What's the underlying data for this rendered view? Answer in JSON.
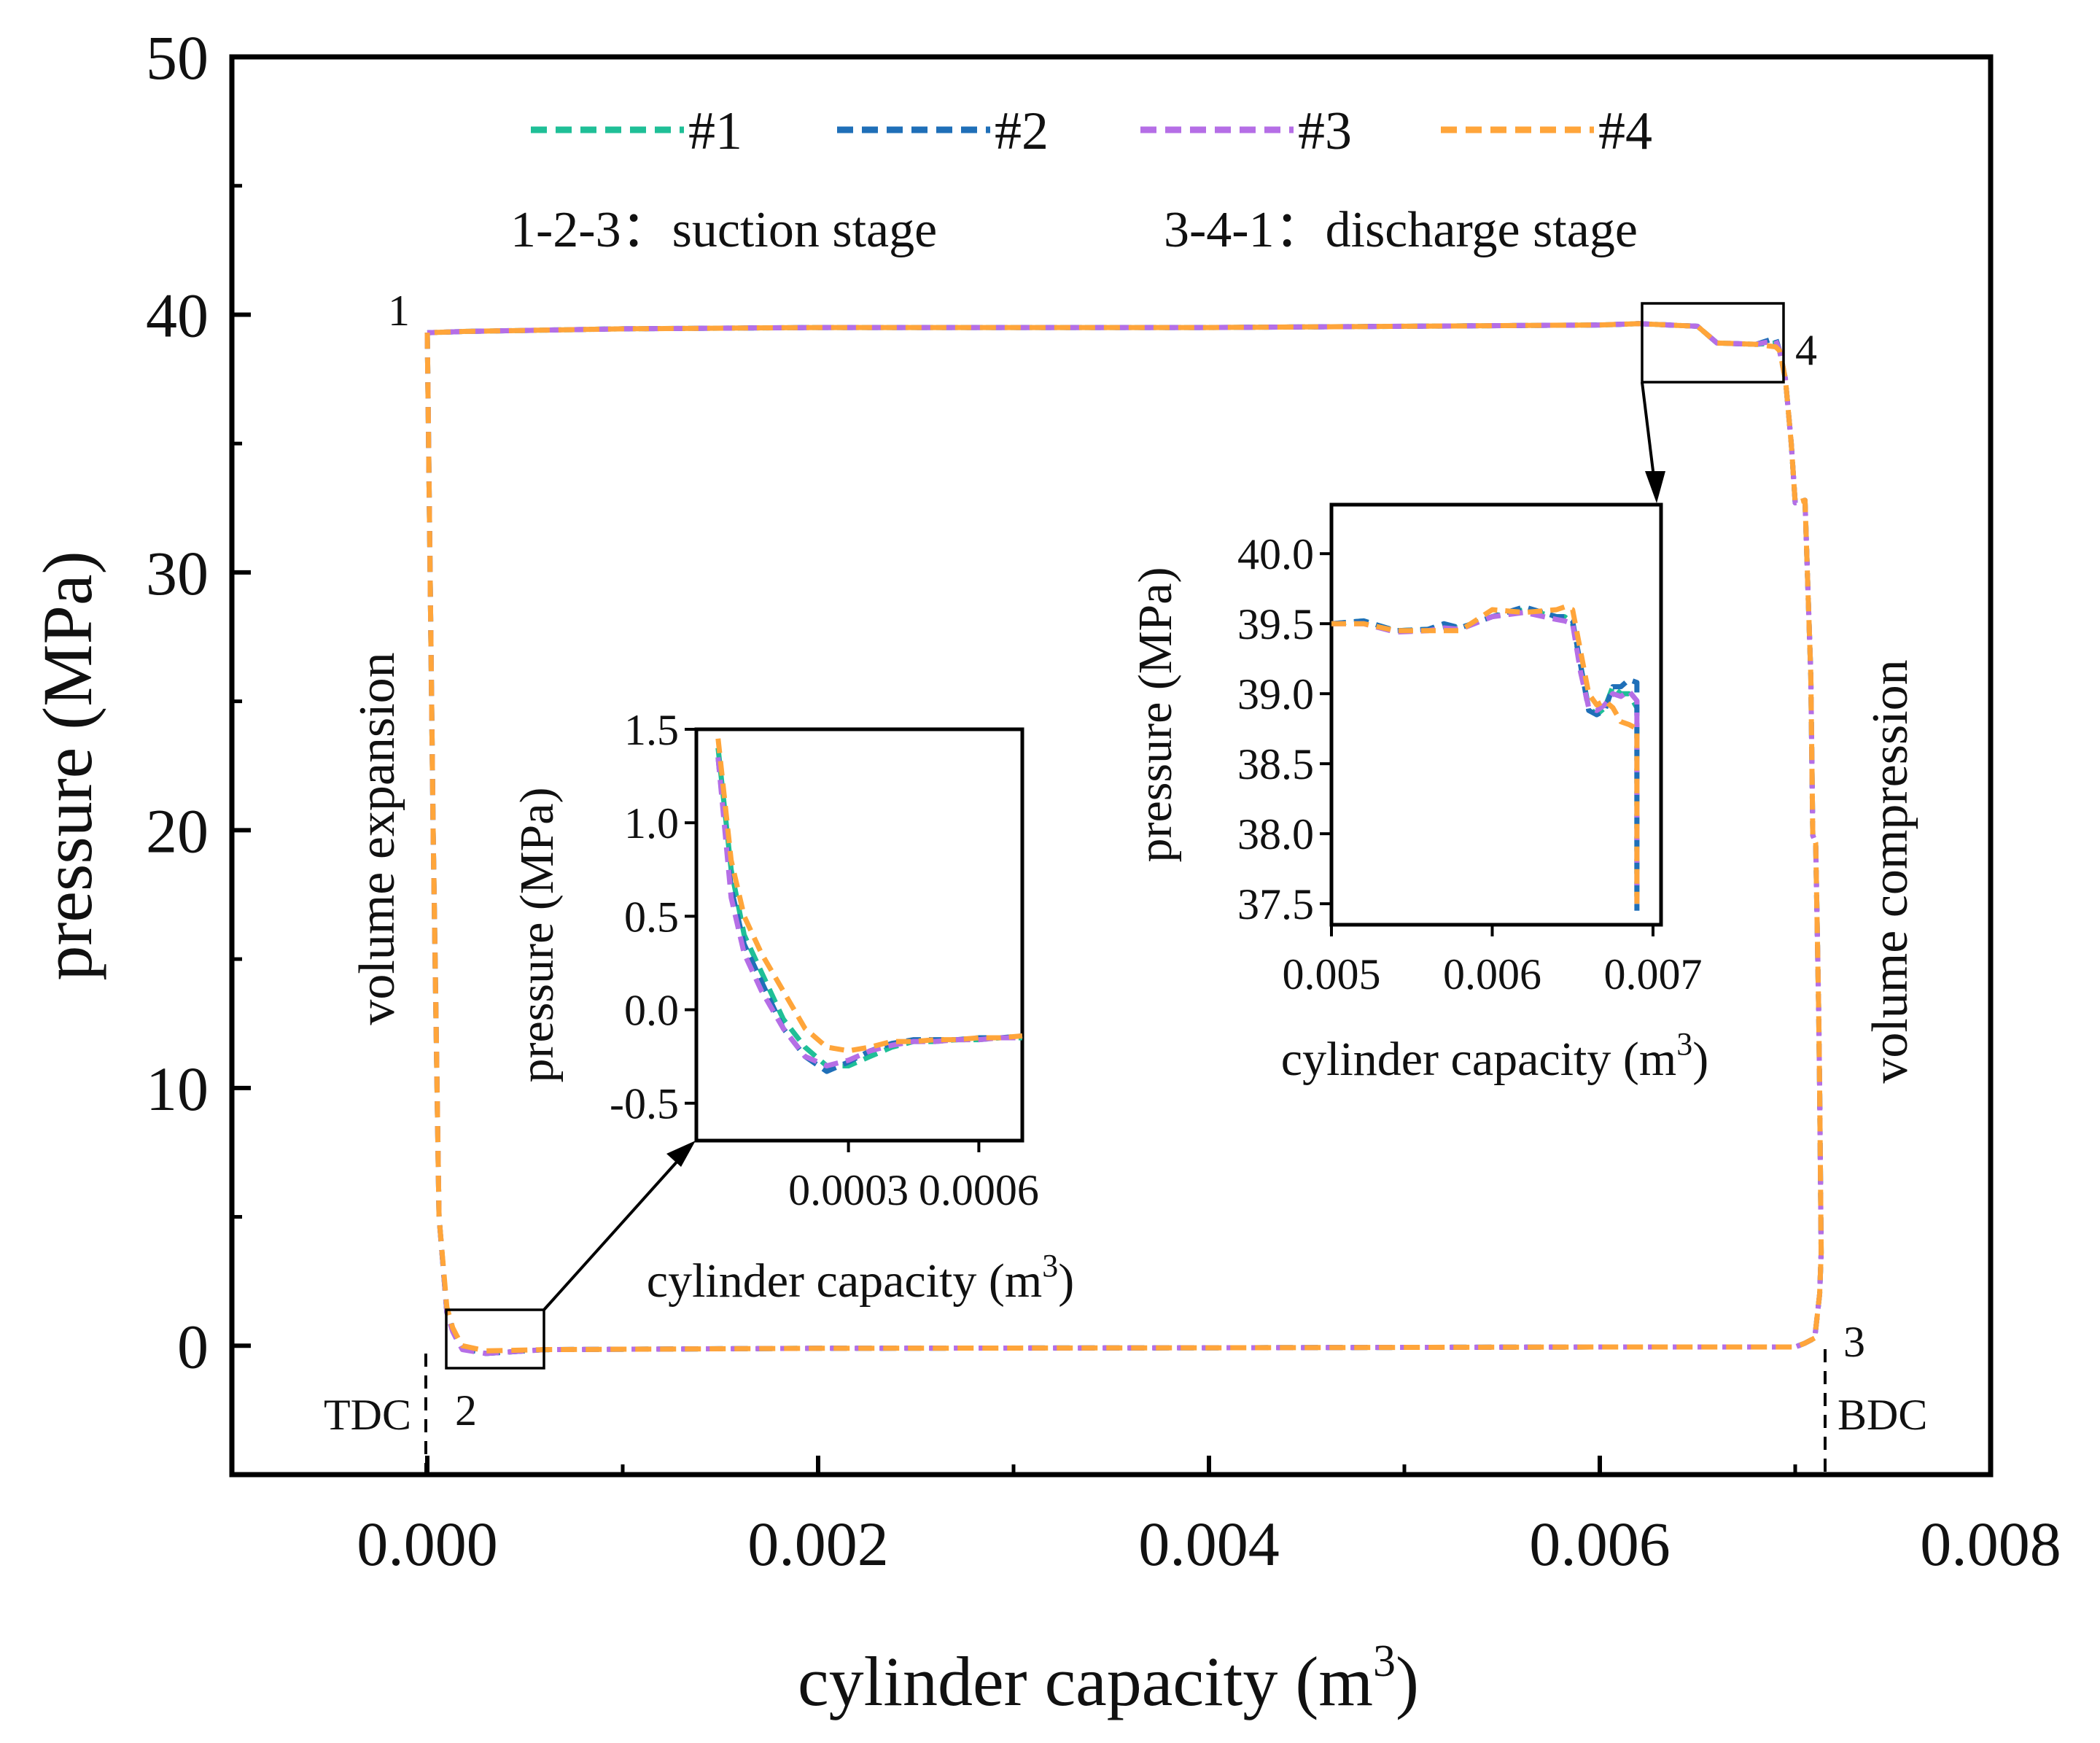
{
  "chart_data": {
    "type": "line",
    "title": "",
    "xlabel": "cylinder capacity (m",
    "xlabel_sup": "3",
    "xlabel_tail": ")",
    "ylabel": "pressure (MPa)",
    "xlim": [
      -0.001,
      0.008
    ],
    "ylim": [
      -5,
      50
    ],
    "x_ticks": [
      "0.000",
      "0.002",
      "0.004",
      "0.006",
      "0.008"
    ],
    "x_tick_values": [
      0,
      0.002,
      0.004,
      0.006,
      0.008
    ],
    "y_ticks": [
      "0",
      "10",
      "20",
      "30",
      "40",
      "50"
    ],
    "y_tick_values": [
      0,
      10,
      20,
      30,
      40,
      50
    ],
    "legend_position": "top-center",
    "grid": false,
    "series": [
      {
        "name": "#1",
        "color": "#1fbf97",
        "dash": "dashed",
        "x": [
          0,
          3e-05,
          6e-05,
          0.0001,
          0.00013,
          0.00015,
          0.00018,
          0.0003,
          0.0006,
          0.002,
          0.004,
          0.006,
          0.007,
          0.00705,
          0.0071,
          0.007125,
          0.007133,
          0.007125,
          0.00712,
          0.007105,
          0.00709,
          0.00708,
          0.00705,
          0.007,
          0.00698,
          0.00695,
          0.00692,
          0.0069,
          0.0068,
          0.0066,
          0.0065,
          0.00635,
          0.0062,
          0.006,
          0.005,
          0.004,
          0.002,
          0.001,
          0.0002,
          0
        ],
        "y": [
          39.3,
          20,
          5,
          1.3,
          0.6,
          0.3,
          -0.1,
          -0.3,
          -0.15,
          -0.1,
          -0.08,
          -0.05,
          -0.05,
          0.1,
          0.3,
          2,
          3.6,
          10,
          13,
          19.5,
          19.8,
          26,
          32.8,
          32.7,
          35,
          37.5,
          38.6,
          38.9,
          38.85,
          38.9,
          39.55,
          39.6,
          39.65,
          39.6,
          39.55,
          39.5,
          39.5,
          39.45,
          39.35,
          39.3
        ]
      },
      {
        "name": "#2",
        "color": "#1f6fb8",
        "dash": "dashed",
        "x": [
          0,
          3e-05,
          6e-05,
          0.0001,
          0.00013,
          0.00015,
          0.00018,
          0.0003,
          0.0006,
          0.002,
          0.004,
          0.006,
          0.007,
          0.00705,
          0.0071,
          0.007125,
          0.007133,
          0.007125,
          0.00712,
          0.007105,
          0.00709,
          0.00708,
          0.00705,
          0.007,
          0.00698,
          0.00695,
          0.00692,
          0.0069,
          0.0068,
          0.0066,
          0.0065,
          0.00635,
          0.0062,
          0.006,
          0.005,
          0.004,
          0.002,
          0.001,
          0.0002,
          0
        ],
        "y": [
          39.3,
          20,
          5,
          1.3,
          0.6,
          0.3,
          -0.1,
          -0.3,
          -0.15,
          -0.1,
          -0.08,
          -0.05,
          -0.05,
          0.1,
          0.3,
          2,
          3.6,
          10,
          13,
          19.5,
          19.8,
          26,
          32.8,
          32.7,
          35,
          37.5,
          38.6,
          39.1,
          38.85,
          38.9,
          39.55,
          39.6,
          39.65,
          39.6,
          39.55,
          39.5,
          39.5,
          39.45,
          39.35,
          39.3
        ]
      },
      {
        "name": "#3",
        "color": "#b56ee6",
        "dash": "dashed",
        "x": [
          0,
          3e-05,
          6e-05,
          0.0001,
          0.00013,
          0.00015,
          0.00018,
          0.0003,
          0.0006,
          0.002,
          0.004,
          0.006,
          0.007,
          0.00705,
          0.0071,
          0.007125,
          0.007133,
          0.007125,
          0.00712,
          0.007105,
          0.00709,
          0.00708,
          0.00705,
          0.007,
          0.00698,
          0.00695,
          0.00692,
          0.0069,
          0.0068,
          0.0066,
          0.0065,
          0.00635,
          0.0062,
          0.006,
          0.005,
          0.004,
          0.002,
          0.001,
          0.0002,
          0
        ],
        "y": [
          39.3,
          20,
          5,
          1.3,
          0.55,
          0.25,
          -0.15,
          -0.3,
          -0.15,
          -0.1,
          -0.08,
          -0.05,
          -0.05,
          0.1,
          0.3,
          2,
          3.6,
          10,
          13,
          19.5,
          19.8,
          26,
          32.8,
          32.7,
          35,
          37.5,
          38.6,
          39.0,
          38.85,
          38.9,
          39.55,
          39.6,
          39.65,
          39.6,
          39.55,
          39.5,
          39.5,
          39.45,
          39.35,
          39.3
        ]
      },
      {
        "name": "#4",
        "color": "#ffa53a",
        "dash": "dashed",
        "x": [
          0,
          3e-05,
          6e-05,
          0.0001,
          0.00013,
          0.00015,
          0.00018,
          0.0003,
          0.0006,
          0.002,
          0.004,
          0.006,
          0.007,
          0.00705,
          0.0071,
          0.007125,
          0.007133,
          0.007125,
          0.00712,
          0.007105,
          0.00709,
          0.00708,
          0.00705,
          0.007,
          0.00698,
          0.00695,
          0.00692,
          0.0069,
          0.0068,
          0.0066,
          0.0065,
          0.00635,
          0.0062,
          0.006,
          0.005,
          0.004,
          0.002,
          0.001,
          0.0002,
          0
        ],
        "y": [
          39.3,
          20,
          5,
          1.5,
          0.7,
          0.4,
          0.0,
          -0.2,
          -0.15,
          -0.1,
          -0.08,
          -0.05,
          -0.05,
          0.1,
          0.3,
          2,
          3.6,
          10,
          13,
          19.5,
          19.8,
          26,
          32.8,
          32.7,
          35,
          37.5,
          38.6,
          38.75,
          38.85,
          38.9,
          39.55,
          39.6,
          39.65,
          39.6,
          39.55,
          39.5,
          39.5,
          39.45,
          39.35,
          39.3
        ]
      }
    ],
    "insets": [
      {
        "id": "inset-suction",
        "xlabel": "cylinder capacity (m",
        "xlabel_sup": "3",
        "xlabel_tail": ")",
        "ylabel": "pressure (MPa)",
        "xlim": [
          -5e-05,
          0.0007
        ],
        "ylim": [
          -0.7,
          1.5
        ],
        "x_ticks": [
          "0.0003",
          "0.0006"
        ],
        "x_tick_values": [
          0.0003,
          0.0006
        ],
        "y_ticks": [
          "1.5",
          "1.0",
          "0.5",
          "0.0",
          "-0.5"
        ],
        "y_tick_values": [
          1.5,
          1.0,
          0.5,
          0.0,
          -0.5
        ],
        "series": [
          {
            "name": "#1",
            "x": [
              0,
              3e-05,
              6e-05,
              0.0001,
              0.00015,
              0.0002,
              0.00025,
              0.0003,
              0.00035,
              0.0004,
              0.00045,
              0.0005,
              0.00055,
              0.0006,
              0.00065,
              0.0007
            ],
            "y": [
              1.4,
              0.75,
              0.4,
              0.2,
              -0.05,
              -0.2,
              -0.3,
              -0.3,
              -0.25,
              -0.2,
              -0.17,
              -0.17,
              -0.16,
              -0.16,
              -0.15,
              -0.15
            ]
          },
          {
            "name": "#2",
            "x": [
              0,
              3e-05,
              6e-05,
              0.0001,
              0.00015,
              0.0002,
              0.00025,
              0.0003,
              0.00035,
              0.0004,
              0.00045,
              0.0005,
              0.00055,
              0.0006,
              0.00065,
              0.0007
            ],
            "y": [
              1.35,
              0.65,
              0.35,
              0.15,
              -0.1,
              -0.25,
              -0.33,
              -0.28,
              -0.22,
              -0.18,
              -0.16,
              -0.16,
              -0.16,
              -0.15,
              -0.15,
              -0.14
            ]
          },
          {
            "name": "#3",
            "x": [
              0,
              3e-05,
              6e-05,
              0.0001,
              0.00015,
              0.0002,
              0.00025,
              0.0003,
              0.00035,
              0.0004,
              0.00045,
              0.0005,
              0.00055,
              0.0006,
              0.00065,
              0.0007
            ],
            "y": [
              1.35,
              0.6,
              0.3,
              0.1,
              -0.1,
              -0.25,
              -0.3,
              -0.27,
              -0.22,
              -0.19,
              -0.17,
              -0.17,
              -0.16,
              -0.16,
              -0.15,
              -0.15
            ]
          },
          {
            "name": "#4",
            "x": [
              0,
              3e-05,
              6e-05,
              0.0001,
              0.00015,
              0.0002,
              0.00025,
              0.0003,
              0.00035,
              0.0004,
              0.00045,
              0.0005,
              0.00055,
              0.0006,
              0.00065,
              0.0007
            ],
            "y": [
              1.45,
              0.8,
              0.5,
              0.3,
              0.1,
              -0.1,
              -0.2,
              -0.22,
              -0.2,
              -0.17,
              -0.17,
              -0.16,
              -0.16,
              -0.15,
              -0.15,
              -0.14
            ]
          }
        ]
      },
      {
        "id": "inset-discharge",
        "xlabel": "cylinder capacity (m",
        "xlabel_sup": "3",
        "xlabel_tail": ")",
        "ylabel": "pressure (MPa)",
        "xlim": [
          0.005,
          0.00705
        ],
        "ylim": [
          37.35,
          40.35
        ],
        "x_ticks": [
          "0.005",
          "0.006",
          "0.007"
        ],
        "x_tick_values": [
          0.005,
          0.006,
          0.007
        ],
        "y_ticks": [
          "40.0",
          "39.5",
          "39.0",
          "38.5",
          "38.0",
          "37.5"
        ],
        "y_tick_values": [
          40.0,
          39.5,
          39.0,
          38.5,
          38.0,
          37.5
        ],
        "series": [
          {
            "name": "#1",
            "x": [
              0.005,
              0.0052,
              0.0054,
              0.0056,
              0.0057,
              0.0058,
              0.006,
              0.0062,
              0.0064,
              0.00645,
              0.0065,
              0.00655,
              0.0066,
              0.00665,
              0.0067,
              0.00675,
              0.0068,
              0.00685,
              0.0069,
              0.0069,
              0.0069
            ],
            "y": [
              39.5,
              39.52,
              39.45,
              39.46,
              39.48,
              39.47,
              39.55,
              39.6,
              39.55,
              39.55,
              39.5,
              39.2,
              38.9,
              38.85,
              38.9,
              39.05,
              39.0,
              39.0,
              38.9,
              38.5,
              37.5
            ]
          },
          {
            "name": "#2",
            "x": [
              0.005,
              0.0052,
              0.0054,
              0.0056,
              0.0057,
              0.0058,
              0.006,
              0.0062,
              0.0064,
              0.00645,
              0.0065,
              0.00655,
              0.0066,
              0.00665,
              0.0067,
              0.00675,
              0.0068,
              0.00685,
              0.0069,
              0.0069,
              0.0069
            ],
            "y": [
              39.5,
              39.52,
              39.45,
              39.46,
              39.5,
              39.47,
              39.55,
              39.62,
              39.55,
              39.55,
              39.52,
              39.2,
              38.88,
              38.85,
              38.88,
              39.05,
              39.05,
              39.1,
              39.08,
              38.5,
              37.45
            ]
          },
          {
            "name": "#3",
            "x": [
              0.005,
              0.0052,
              0.0054,
              0.0056,
              0.0057,
              0.0058,
              0.006,
              0.0062,
              0.0064,
              0.00645,
              0.0065,
              0.00655,
              0.0066,
              0.00665,
              0.0067,
              0.00675,
              0.0068,
              0.00685,
              0.0069,
              0.0069,
              0.0069
            ],
            "y": [
              39.5,
              39.5,
              39.44,
              39.45,
              39.47,
              39.46,
              39.55,
              39.58,
              39.53,
              39.52,
              39.5,
              39.15,
              38.9,
              38.88,
              38.92,
              39.0,
              38.98,
              39.02,
              38.95,
              38.5,
              37.5
            ]
          },
          {
            "name": "#4",
            "x": [
              0.005,
              0.0052,
              0.0054,
              0.0056,
              0.0057,
              0.0058,
              0.006,
              0.0062,
              0.0064,
              0.00645,
              0.0065,
              0.00655,
              0.0066,
              0.00665,
              0.0067,
              0.00675,
              0.0068,
              0.00685,
              0.0069,
              0.0069,
              0.0069
            ],
            "y": [
              39.5,
              39.5,
              39.45,
              39.45,
              39.45,
              39.45,
              39.6,
              39.58,
              39.6,
              39.62,
              39.6,
              39.3,
              39.0,
              38.92,
              38.95,
              38.9,
              38.8,
              38.78,
              38.75,
              38.4,
              37.5
            ]
          }
        ]
      }
    ],
    "annotations": {
      "stage_suction": "1-2-3：suction stage",
      "stage_discharge": "3-4-1：discharge stage",
      "volume_expansion": "volume expansion",
      "volume_compression": "volume compression",
      "tdc": "TDC",
      "bdc": "BDC",
      "point_1": "1",
      "point_2": "2",
      "point_3": "3",
      "point_4": "4"
    }
  }
}
